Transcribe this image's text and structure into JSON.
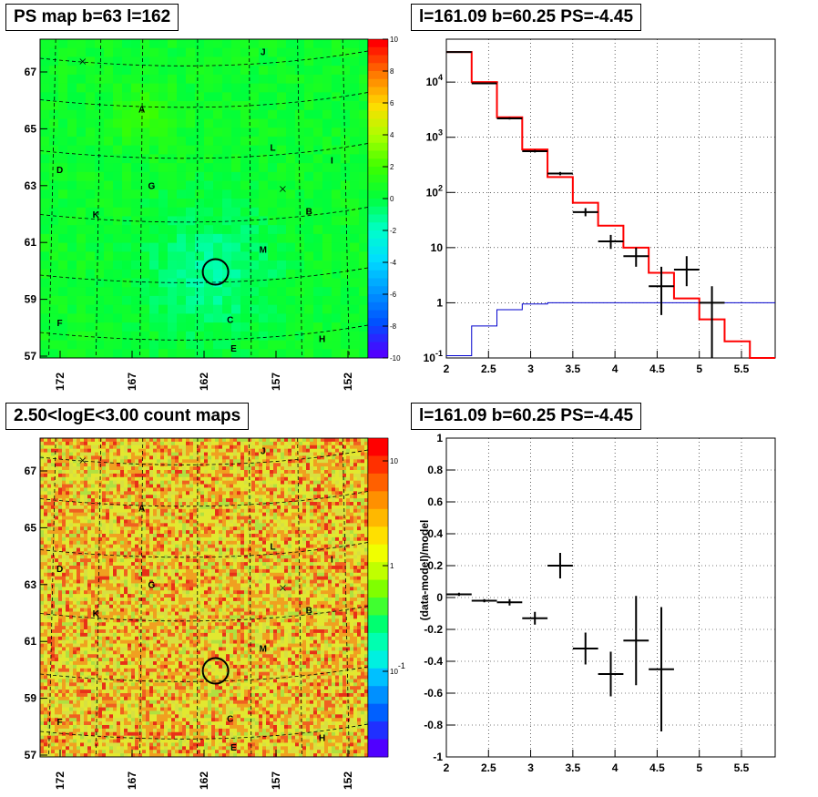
{
  "panels": {
    "tl_title": "PS map b=63 l=162",
    "tr_title": "l=161.09 b=60.25 PS=-4.45",
    "bl_title": "2.50<logE<3.00 count maps",
    "br_title": "l=161.09 b=60.25 PS=-4.45"
  },
  "chart_data": [
    {
      "type": "heatmap",
      "panel": "top-left",
      "title": "PS map b=63 l=162",
      "x_ticks": [
        "172",
        "167",
        "162",
        "157",
        "152"
      ],
      "y_ticks": [
        "67",
        "65",
        "63",
        "61",
        "59",
        "57"
      ],
      "colorbar": {
        "min": -10,
        "max": 10,
        "ticks": [
          "10",
          "8",
          "6",
          "4",
          "2",
          "0",
          "-2",
          "-4",
          "-6",
          "-8",
          "-10"
        ]
      },
      "source_labels": [
        "J",
        "A",
        "L",
        "I",
        "D",
        "G",
        "B",
        "K",
        "M",
        "F",
        "C",
        "H",
        "E"
      ],
      "marked_source": {
        "l": 161.09,
        "b": 60.25,
        "PS": -4.45
      },
      "colors": {
        "low": "#5000ff",
        "mid": "#00ff40",
        "high": "#ff0000"
      }
    },
    {
      "type": "line",
      "panel": "top-right",
      "title": "l=161.09 b=60.25 PS=-4.45",
      "x_ticks": [
        "2",
        "2.5",
        "3",
        "3.5",
        "4",
        "4.5",
        "5",
        "5.5"
      ],
      "xlim": [
        2,
        5.9
      ],
      "yscale": "log",
      "ylim": [
        0.1,
        60000
      ],
      "y_ticks": [
        "10^{-1}",
        "1",
        "10",
        "10^{2}",
        "10^{3}",
        "10^{4}"
      ],
      "grid": true,
      "series": [
        {
          "color": "#ff0000",
          "step": true,
          "bin_edges": [
            2.0,
            2.3,
            2.6,
            2.9,
            3.2,
            3.5,
            3.8,
            4.1,
            4.4,
            4.7,
            5.0,
            5.3,
            5.6,
            5.9
          ],
          "values": [
            35000,
            10000,
            2300,
            600,
            190,
            65,
            25,
            10,
            3.5,
            1.2,
            0.5,
            0.2,
            0.07
          ]
        },
        {
          "color": "#0000cc",
          "step": true,
          "bin_edges": [
            2.0,
            2.3,
            2.6,
            2.9,
            3.2,
            3.5,
            3.8,
            4.1,
            4.4,
            4.7,
            5.0,
            5.3,
            5.6,
            5.9
          ],
          "values": [
            0.11,
            0.38,
            0.75,
            0.95,
            1.0,
            1.0,
            1.0,
            1.0,
            1.0,
            1.0,
            1.0,
            1.0,
            1.0
          ]
        },
        {
          "color": "#000000",
          "errorbars": true,
          "points": [
            {
              "x": 2.15,
              "xerr": 0.15,
              "y": 35000,
              "ylo": 34500,
              "yhi": 35500
            },
            {
              "x": 2.45,
              "xerr": 0.15,
              "y": 9500,
              "ylo": 9300,
              "yhi": 9700
            },
            {
              "x": 2.75,
              "xerr": 0.15,
              "y": 2200,
              "ylo": 2100,
              "yhi": 2300
            },
            {
              "x": 3.05,
              "xerr": 0.15,
              "y": 560,
              "ylo": 530,
              "yhi": 590
            },
            {
              "x": 3.35,
              "xerr": 0.15,
              "y": 220,
              "ylo": 205,
              "yhi": 235
            },
            {
              "x": 3.65,
              "xerr": 0.15,
              "y": 44,
              "ylo": 37,
              "yhi": 52
            },
            {
              "x": 3.95,
              "xerr": 0.15,
              "y": 13,
              "ylo": 9.5,
              "yhi": 17
            },
            {
              "x": 4.25,
              "xerr": 0.15,
              "y": 7,
              "ylo": 4.5,
              "yhi": 10
            },
            {
              "x": 4.55,
              "xerr": 0.15,
              "y": 2,
              "ylo": 0.6,
              "yhi": 4.5
            },
            {
              "x": 4.85,
              "xerr": 0.15,
              "y": 4,
              "ylo": 2,
              "yhi": 7
            },
            {
              "x": 5.15,
              "xerr": 0.15,
              "y": 1,
              "ylo": 0.1,
              "yhi": 2
            }
          ]
        }
      ]
    },
    {
      "type": "heatmap",
      "panel": "bottom-left",
      "title": "2.50<logE<3.00 count maps",
      "x_ticks": [
        "172",
        "167",
        "162",
        "157",
        "152"
      ],
      "y_ticks": [
        "67",
        "65",
        "63",
        "61",
        "59",
        "57"
      ],
      "colorbar": {
        "scale": "log",
        "ticks": [
          "10",
          "1",
          "10^{-1}"
        ]
      },
      "source_labels": [
        "J",
        "A",
        "L",
        "I",
        "D",
        "G",
        "B",
        "K",
        "M",
        "F",
        "C",
        "H",
        "E"
      ],
      "colors": {
        "low": "#5000ff",
        "mid": "#e8e000",
        "high": "#ff0000"
      }
    },
    {
      "type": "scatter",
      "panel": "bottom-right",
      "title": "l=161.09 b=60.25 PS=-4.45",
      "ylabel": "(data-model)/model",
      "xlim": [
        2,
        5.9
      ],
      "ylim": [
        -1,
        1
      ],
      "x_ticks": [
        "2",
        "2.5",
        "3",
        "3.5",
        "4",
        "4.5",
        "5",
        "5.5"
      ],
      "y_ticks": [
        "1",
        "0.8",
        "0.6",
        "0.4",
        "0.2",
        "0",
        "-0.2",
        "-0.4",
        "-0.6",
        "-0.8",
        "-1"
      ],
      "grid": true,
      "points": [
        {
          "x": 2.15,
          "xerr": 0.15,
          "y": 0.02,
          "yerr": 0.01
        },
        {
          "x": 2.45,
          "xerr": 0.15,
          "y": -0.02,
          "yerr": 0.01
        },
        {
          "x": 2.75,
          "xerr": 0.15,
          "y": -0.03,
          "yerr": 0.02
        },
        {
          "x": 3.05,
          "xerr": 0.15,
          "y": -0.13,
          "yerr": 0.04
        },
        {
          "x": 3.35,
          "xerr": 0.15,
          "y": 0.2,
          "yerr": 0.08
        },
        {
          "x": 3.65,
          "xerr": 0.15,
          "y": -0.32,
          "yerr": 0.1
        },
        {
          "x": 3.95,
          "xerr": 0.15,
          "y": -0.48,
          "yerr": 0.14
        },
        {
          "x": 4.25,
          "xerr": 0.15,
          "y": -0.27,
          "yerr": 0.28
        },
        {
          "x": 4.55,
          "xerr": 0.15,
          "y": -0.45,
          "yerr": 0.39
        }
      ]
    }
  ]
}
